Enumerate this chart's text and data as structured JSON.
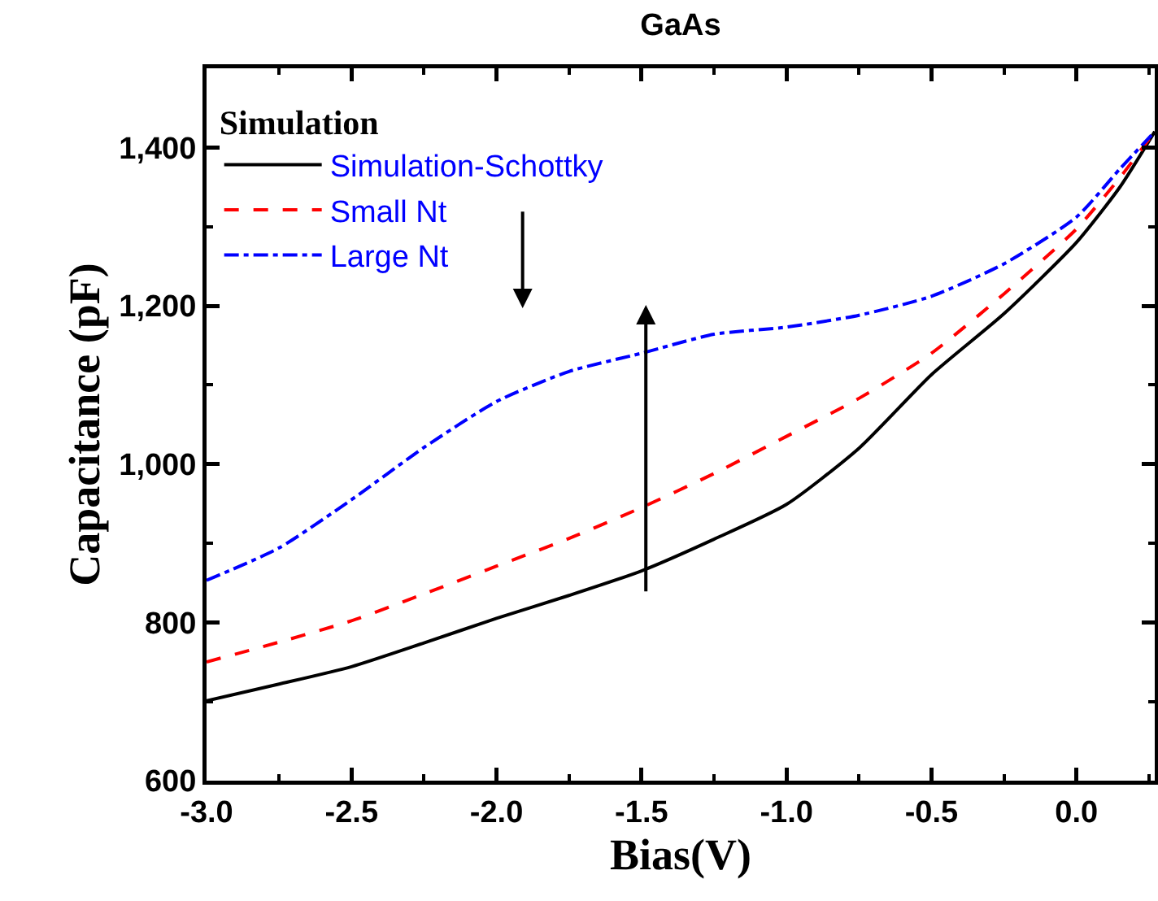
{
  "chart_data": {
    "type": "line",
    "title": "GaAs",
    "xlabel": "Bias(V)",
    "ylabel": "Capacitance (pF)",
    "legend_title": "Simulation",
    "legend": "top left",
    "grid": false,
    "xlim": [
      -3,
      0.27
    ],
    "xticks": [
      {
        "value": -3,
        "label": "-3.0"
      },
      {
        "value": -2.5,
        "label": "-2.5"
      },
      {
        "value": -2,
        "label": "-2.0"
      },
      {
        "value": -1.5,
        "label": "-1.5"
      },
      {
        "value": -1,
        "label": "-1.0"
      },
      {
        "value": -0.5,
        "label": "-0.5"
      },
      {
        "value": 0,
        "label": "0.0"
      }
    ],
    "ylim": [
      600,
      1500
    ],
    "yticks": [
      600,
      800,
      {
        "value": 1000,
        "label": "1,000"
      },
      {
        "value": 1200,
        "label": "1,200"
      },
      {
        "value": 1400,
        "label": "1,400"
      }
    ],
    "x": [
      -3,
      -2.75,
      -2.5,
      -2.25,
      -2,
      -1.75,
      -1.5,
      -1.25,
      -1,
      -0.75,
      -0.5,
      -0.25,
      0,
      0.15,
      0.27
    ],
    "series": [
      {
        "name": "Simulation-Schottky",
        "color": "#000000",
        "line_style": "solid",
        "values": [
          701,
          722,
          744,
          774,
          805,
          834,
          865,
          905,
          949,
          1020,
          1113,
          1190,
          1280,
          1350,
          1420
        ]
      },
      {
        "name": "Small Nt",
        "color": "#ff0000",
        "line_style": "dashed",
        "values": [
          750,
          775,
          802,
          836,
          871,
          906,
          945,
          988,
          1035,
          1083,
          1140,
          1215,
          1297,
          1362,
          1420
        ]
      },
      {
        "name": "Large Nt",
        "color": "#0000ff",
        "line_style": "dashdot",
        "values": [
          853,
          894,
          955,
          1021,
          1079,
          1117,
          1140,
          1164,
          1173,
          1188,
          1212,
          1253,
          1312,
          1373,
          1420
        ]
      }
    ]
  }
}
